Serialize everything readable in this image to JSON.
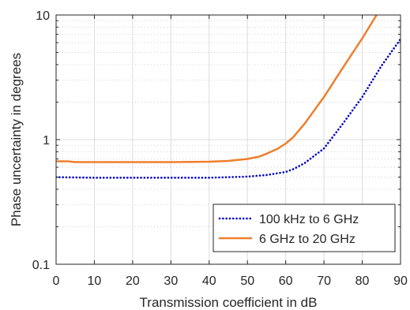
{
  "chart_data": {
    "type": "line",
    "title": "",
    "xlabel": "Transmission coefficient in dB",
    "ylabel": "Phase uncertainty in degrees",
    "xlim": [
      0,
      90
    ],
    "ylim": [
      0.1,
      10
    ],
    "yscale": "log",
    "grid": true,
    "minor_grid": true,
    "legend_position": "bottom-right",
    "x_ticks": [
      0,
      10,
      20,
      30,
      40,
      50,
      60,
      70,
      80,
      90
    ],
    "x_tick_labels": [
      "0",
      "10",
      "20",
      "30",
      "40",
      "50",
      "60",
      "70",
      "80",
      "90"
    ],
    "y_ticks": [
      0.1,
      1,
      10
    ],
    "y_tick_labels": [
      "0.1",
      "1",
      "10"
    ],
    "series": [
      {
        "name": "100 kHz to 6 GHz",
        "color": "#0000cc",
        "style": "dotted",
        "x": [
          0,
          10,
          20,
          30,
          40,
          45,
          50,
          55,
          60,
          62,
          65,
          70,
          75,
          80,
          85,
          90
        ],
        "y": [
          0.5,
          0.495,
          0.495,
          0.495,
          0.495,
          0.5,
          0.505,
          0.52,
          0.55,
          0.58,
          0.65,
          0.85,
          1.35,
          2.2,
          3.9,
          6.4
        ]
      },
      {
        "name": "6 GHz to 20 GHz",
        "color": "#ee7f2d",
        "style": "solid",
        "x": [
          0,
          3,
          5,
          10,
          20,
          30,
          40,
          45,
          50,
          53,
          55,
          58,
          60,
          62,
          65,
          70,
          75,
          80,
          84
        ],
        "y": [
          0.67,
          0.67,
          0.66,
          0.66,
          0.66,
          0.66,
          0.665,
          0.675,
          0.7,
          0.73,
          0.77,
          0.85,
          0.93,
          1.05,
          1.35,
          2.2,
          3.8,
          6.5,
          10.3
        ]
      }
    ]
  }
}
